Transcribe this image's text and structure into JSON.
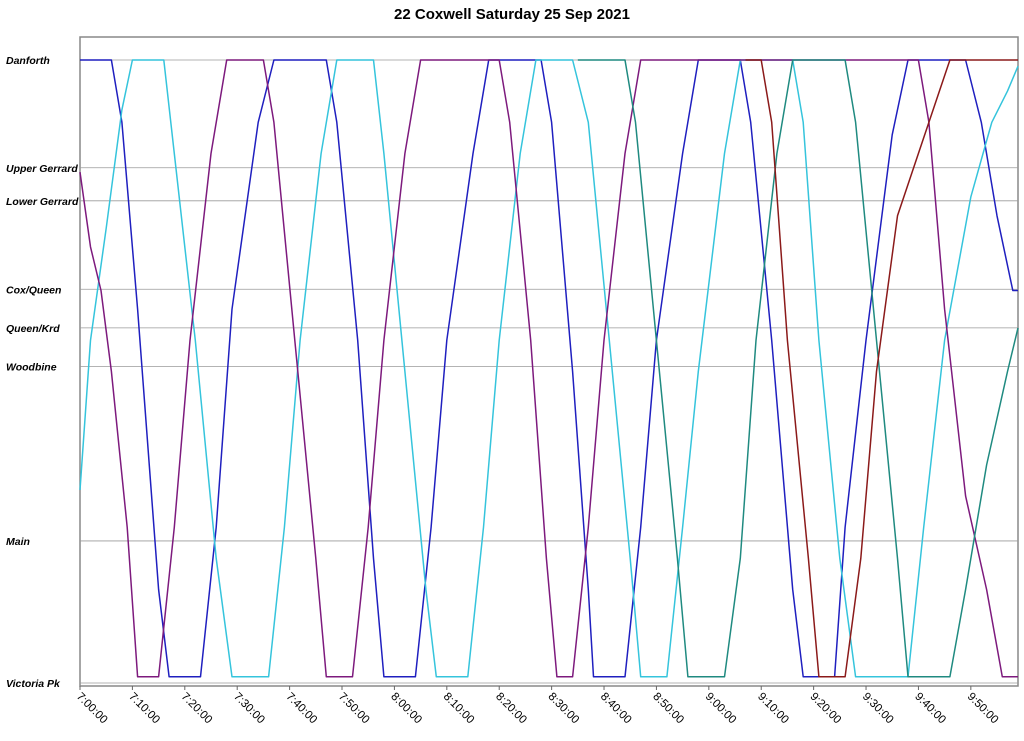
{
  "chart_data": {
    "type": "line",
    "title": "22 Coxwell Saturday 25 Sep 2021",
    "xlabel": "",
    "ylabel": "",
    "x_range": [
      "7:00:00",
      "9:59:00"
    ],
    "x_ticks": [
      "7:00:00",
      "7:10:00",
      "7:20:00",
      "7:30:00",
      "7:40:00",
      "7:50:00",
      "8:00:00",
      "8:10:00",
      "8:20:00",
      "8:30:00",
      "8:40:00",
      "8:50:00",
      "9:00:00",
      "9:10:00",
      "9:20:00",
      "9:30:00",
      "9:40:00",
      "9:50:00"
    ],
    "y_stops": [
      {
        "label": "Danforth",
        "pos": 1.0
      },
      {
        "label": "Upper Gerrard",
        "pos": 0.827
      },
      {
        "label": "Lower Gerrard",
        "pos": 0.774
      },
      {
        "label": "Cox/Queen",
        "pos": 0.632
      },
      {
        "label": "Queen/Krd",
        "pos": 0.57
      },
      {
        "label": "Woodbine",
        "pos": 0.508
      },
      {
        "label": "Main",
        "pos": 0.228
      },
      {
        "label": "Victoria Pk",
        "pos": 0.0
      }
    ],
    "grid": true,
    "legend": "none",
    "series": [
      {
        "color": "#1f1fbf",
        "points": [
          [
            "7:00:00",
            1.0
          ],
          [
            "7:06:00",
            1.0
          ],
          [
            "7:08:00",
            0.9
          ],
          [
            "7:11:00",
            0.6
          ],
          [
            "7:15:00",
            0.15
          ],
          [
            "7:17:00",
            0.01
          ],
          [
            "7:23:00",
            0.01
          ],
          [
            "7:26:00",
            0.25
          ],
          [
            "7:29:00",
            0.6
          ],
          [
            "7:34:00",
            0.9
          ],
          [
            "7:37:00",
            1.0
          ],
          [
            "7:47:00",
            1.0
          ],
          [
            "7:49:00",
            0.9
          ],
          [
            "7:53:00",
            0.55
          ],
          [
            "7:56:00",
            0.2
          ],
          [
            "7:58:00",
            0.01
          ],
          [
            "8:04:00",
            0.01
          ],
          [
            "8:07:00",
            0.25
          ],
          [
            "8:10:00",
            0.55
          ],
          [
            "8:15:00",
            0.85
          ],
          [
            "8:18:00",
            1.0
          ],
          [
            "8:28:00",
            1.0
          ],
          [
            "8:30:00",
            0.9
          ],
          [
            "8:34:00",
            0.5
          ],
          [
            "8:37:00",
            0.15
          ],
          [
            "8:38:00",
            0.01
          ],
          [
            "8:44:00",
            0.01
          ],
          [
            "8:47:00",
            0.25
          ],
          [
            "8:50:00",
            0.55
          ],
          [
            "8:55:00",
            0.85
          ],
          [
            "8:58:00",
            1.0
          ],
          [
            "9:06:00",
            1.0
          ],
          [
            "9:08:00",
            0.9
          ],
          [
            "9:12:00",
            0.55
          ],
          [
            "9:16:00",
            0.15
          ],
          [
            "9:18:00",
            0.01
          ],
          [
            "9:24:00",
            0.01
          ],
          [
            "9:26:00",
            0.25
          ],
          [
            "9:30:00",
            0.55
          ],
          [
            "9:35:00",
            0.88
          ],
          [
            "9:38:00",
            1.0
          ],
          [
            "9:49:00",
            1.0
          ],
          [
            "9:52:00",
            0.9
          ],
          [
            "9:55:00",
            0.75
          ],
          [
            "9:58:00",
            0.63
          ],
          [
            "9:59:00",
            0.63
          ]
        ]
      },
      {
        "color": "#35c4dc",
        "points": [
          [
            "7:00:00",
            0.31
          ],
          [
            "7:02:00",
            0.55
          ],
          [
            "7:05:00",
            0.73
          ],
          [
            "7:08:00",
            0.92
          ],
          [
            "7:10:00",
            1.0
          ],
          [
            "7:16:00",
            1.0
          ],
          [
            "7:18:00",
            0.85
          ],
          [
            "7:22:00",
            0.55
          ],
          [
            "7:26:00",
            0.2
          ],
          [
            "7:29:00",
            0.01
          ],
          [
            "7:36:00",
            0.01
          ],
          [
            "7:39:00",
            0.25
          ],
          [
            "7:42:00",
            0.55
          ],
          [
            "7:46:00",
            0.85
          ],
          [
            "7:49:00",
            1.0
          ],
          [
            "7:56:00",
            1.0
          ],
          [
            "7:58:00",
            0.85
          ],
          [
            "8:02:00",
            0.5
          ],
          [
            "8:06:00",
            0.15
          ],
          [
            "8:08:00",
            0.01
          ],
          [
            "8:14:00",
            0.01
          ],
          [
            "8:17:00",
            0.25
          ],
          [
            "8:20:00",
            0.55
          ],
          [
            "8:24:00",
            0.85
          ],
          [
            "8:27:00",
            1.0
          ],
          [
            "8:34:00",
            1.0
          ],
          [
            "8:37:00",
            0.9
          ],
          [
            "8:41:00",
            0.55
          ],
          [
            "8:45:00",
            0.2
          ],
          [
            "8:47:00",
            0.01
          ],
          [
            "8:52:00",
            0.01
          ],
          [
            "8:55:00",
            0.25
          ],
          [
            "8:58:00",
            0.5
          ],
          [
            "9:03:00",
            0.85
          ],
          [
            "9:06:00",
            1.0
          ],
          [
            "9:16:00",
            1.0
          ],
          [
            "9:18:00",
            0.9
          ],
          [
            "9:21:00",
            0.55
          ],
          [
            "9:25:00",
            0.2
          ],
          [
            "9:28:00",
            0.01
          ],
          [
            "9:38:00",
            0.01
          ],
          [
            "9:41:00",
            0.25
          ],
          [
            "9:45:00",
            0.55
          ],
          [
            "9:50:00",
            0.78
          ],
          [
            "9:54:00",
            0.9
          ],
          [
            "9:57:00",
            0.95
          ],
          [
            "9:59:00",
            0.99
          ]
        ]
      },
      {
        "color": "#7d1a7d",
        "points": [
          [
            "7:00:00",
            0.82
          ],
          [
            "7:02:00",
            0.7
          ],
          [
            "7:04:00",
            0.63
          ],
          [
            "7:06:00",
            0.5
          ],
          [
            "7:09:00",
            0.25
          ],
          [
            "7:11:00",
            0.01
          ],
          [
            "7:15:00",
            0.01
          ],
          [
            "7:18:00",
            0.25
          ],
          [
            "7:21:00",
            0.55
          ],
          [
            "7:25:00",
            0.85
          ],
          [
            "7:28:00",
            1.0
          ],
          [
            "7:35:00",
            1.0
          ],
          [
            "7:37:00",
            0.9
          ],
          [
            "7:41:00",
            0.55
          ],
          [
            "7:45:00",
            0.2
          ],
          [
            "7:47:00",
            0.01
          ],
          [
            "7:52:00",
            0.01
          ],
          [
            "7:55:00",
            0.25
          ],
          [
            "7:58:00",
            0.55
          ],
          [
            "8:02:00",
            0.85
          ],
          [
            "8:05:00",
            1.0
          ],
          [
            "8:20:00",
            1.0
          ],
          [
            "8:22:00",
            0.9
          ],
          [
            "8:26:00",
            0.55
          ],
          [
            "8:29:00",
            0.2
          ],
          [
            "8:31:00",
            0.01
          ],
          [
            "8:34:00",
            0.01
          ],
          [
            "8:37:00",
            0.25
          ],
          [
            "8:40:00",
            0.55
          ],
          [
            "8:44:00",
            0.85
          ],
          [
            "8:47:00",
            1.0
          ],
          [
            "9:16:00",
            1.0
          ],
          [
            "9:28:00",
            1.0
          ],
          [
            "9:40:00",
            1.0
          ],
          [
            "9:42:00",
            0.9
          ],
          [
            "9:45:00",
            0.6
          ],
          [
            "9:49:00",
            0.3
          ],
          [
            "9:53:00",
            0.15
          ],
          [
            "9:56:00",
            0.01
          ],
          [
            "9:59:00",
            0.01
          ]
        ]
      },
      {
        "color": "#1f8a80",
        "points": [
          [
            "8:35:00",
            1.0
          ],
          [
            "8:44:00",
            1.0
          ],
          [
            "8:46:00",
            0.9
          ],
          [
            "8:50:00",
            0.55
          ],
          [
            "8:54:00",
            0.2
          ],
          [
            "8:56:00",
            0.01
          ],
          [
            "9:03:00",
            0.01
          ],
          [
            "9:06:00",
            0.2
          ],
          [
            "9:09:00",
            0.55
          ],
          [
            "9:13:00",
            0.85
          ],
          [
            "9:16:00",
            1.0
          ],
          [
            "9:26:00",
            1.0
          ],
          [
            "9:28:00",
            0.9
          ],
          [
            "9:32:00",
            0.55
          ],
          [
            "9:36:00",
            0.2
          ],
          [
            "9:38:00",
            0.01
          ],
          [
            "9:46:00",
            0.01
          ],
          [
            "9:49:00",
            0.15
          ],
          [
            "9:53:00",
            0.35
          ],
          [
            "9:57:00",
            0.5
          ],
          [
            "9:59:00",
            0.57
          ]
        ]
      },
      {
        "color": "#8b1a1a",
        "points": [
          [
            "9:07:00",
            1.0
          ],
          [
            "9:10:00",
            1.0
          ],
          [
            "9:12:00",
            0.9
          ],
          [
            "9:15:00",
            0.55
          ],
          [
            "9:19:00",
            0.2
          ],
          [
            "9:21:00",
            0.01
          ],
          [
            "9:26:00",
            0.01
          ],
          [
            "9:29:00",
            0.2
          ],
          [
            "9:32:00",
            0.5
          ],
          [
            "9:36:00",
            0.75
          ],
          [
            "9:40:00",
            0.85
          ],
          [
            "9:44:00",
            0.95
          ],
          [
            "9:46:00",
            1.0
          ],
          [
            "9:59:00",
            1.0
          ]
        ]
      }
    ]
  }
}
